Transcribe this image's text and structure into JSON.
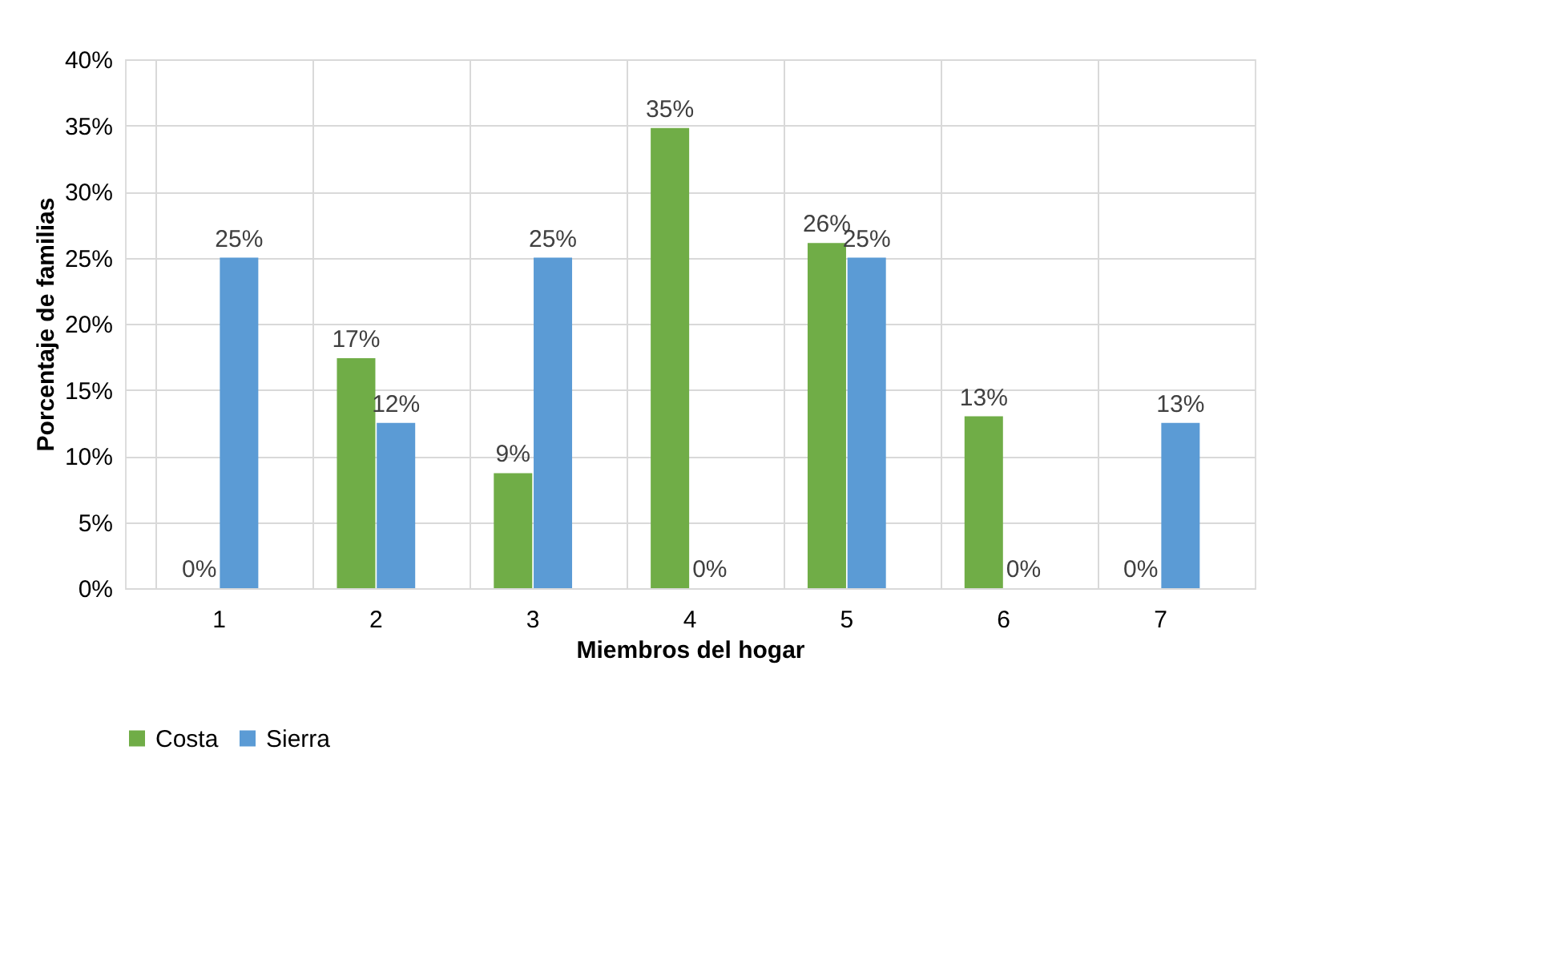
{
  "chart_data": {
    "type": "bar",
    "xlabel": "Miembros del hogar",
    "ylabel": "Porcentaje de familias",
    "categories": [
      "1",
      "2",
      "3",
      "4",
      "5",
      "6",
      "7"
    ],
    "series": [
      {
        "name": "Costa",
        "color": "#70ad47",
        "values": [
          0,
          17.4,
          8.7,
          34.8,
          26.1,
          13,
          0
        ],
        "value_labels": [
          "0%",
          "17%",
          "9%",
          "35%",
          "26%",
          "13%",
          "0%"
        ]
      },
      {
        "name": "Sierra",
        "color": "#5b9bd5",
        "values": [
          25,
          12.5,
          25,
          0,
          25,
          0,
          12.5
        ],
        "value_labels": [
          "25%",
          "12%",
          "25%",
          "0%",
          "25%",
          "0%",
          "13%"
        ]
      }
    ],
    "ylim": [
      0,
      40
    ],
    "yticks": [
      {
        "value": 0,
        "label": "0%"
      },
      {
        "value": 5,
        "label": "5%"
      },
      {
        "value": 10,
        "label": "10%"
      },
      {
        "value": 15,
        "label": "15%"
      },
      {
        "value": 20,
        "label": "20%"
      },
      {
        "value": 25,
        "label": "25%"
      },
      {
        "value": 30,
        "label": "30%"
      },
      {
        "value": 35,
        "label": "35%"
      },
      {
        "value": 40,
        "label": "40%"
      }
    ],
    "grid": true,
    "legend": "bottom"
  }
}
